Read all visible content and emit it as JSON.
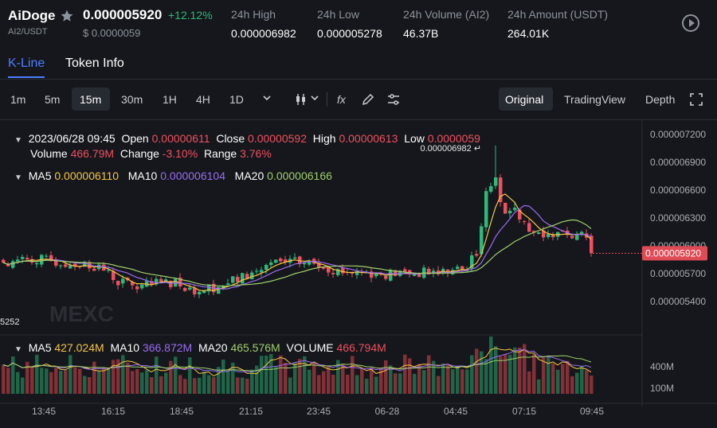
{
  "symbol": {
    "name": "AiDoge",
    "pair": "AI2/USDT"
  },
  "ticker": {
    "price": "0.000005920",
    "change": "+12.12%",
    "usd_price": "$ 0.0000059",
    "stats": [
      {
        "label": "24h High",
        "value": "0.000006982"
      },
      {
        "label": "24h Low",
        "value": "0.000005278"
      },
      {
        "label": "24h Volume (AI2)",
        "value": "46.37B"
      },
      {
        "label": "24h Amount (USDT)",
        "value": "264.01K"
      }
    ]
  },
  "tabs": [
    "K-Line",
    "Token Info"
  ],
  "toolbar": {
    "intervals": [
      "1m",
      "5m",
      "15m",
      "30m",
      "1H",
      "4H",
      "1D"
    ],
    "active_interval": "15m",
    "modes": [
      "Original",
      "TradingView",
      "Depth"
    ],
    "active_mode": "Original"
  },
  "legend": {
    "date": "2023/06/28 09:45",
    "open_label": "Open",
    "open": "0.00000611",
    "close_label": "Close",
    "close": "0.00000592",
    "high_label": "High",
    "high": "0.00000613",
    "low_label": "Low",
    "low": "0.0000059",
    "volume_label": "Volume",
    "volume": "466.79M",
    "change_label": "Change",
    "change": "-3.10%",
    "range_label": "Range",
    "range": "3.76%",
    "ma5_label": "MA5",
    "ma5": "0.000006110",
    "ma10_label": "MA10",
    "ma10": "0.000006104",
    "ma20_label": "MA20",
    "ma20": "0.000006166"
  },
  "volume_legend": {
    "ma5_label": "MA5",
    "ma5": "427.024M",
    "ma10_label": "MA10",
    "ma10": "366.872M",
    "ma20_label": "MA20",
    "ma20": "465.576M",
    "volume_label": "VOLUME",
    "volume": "466.794M"
  },
  "chart": {
    "y_ticks": [
      "0.000007200",
      "0.000006900",
      "0.000006600",
      "0.000006300",
      "0.000006000",
      "0.000005700",
      "0.000005400"
    ],
    "y_values": [
      7.2e-06,
      6.9e-06,
      6.6e-06,
      6.3e-06,
      6e-06,
      5.7e-06,
      5.4e-06
    ],
    "max_label": "0.000006982",
    "min_label": "5252",
    "current_price_label": "0.000005920",
    "volume_ticks": [
      "400M",
      "100M"
    ],
    "x_ticks": [
      "13:45",
      "16:15",
      "18:45",
      "21:15",
      "23:45",
      "06-28",
      "04:45",
      "07:15",
      "09:45"
    ],
    "watermark": "MEXC"
  },
  "colors": {
    "up": "#2db97a",
    "down": "#f0505f",
    "accent": "#4d7cff",
    "ma5": "#f7c544",
    "ma10": "#9b6cf2",
    "ma20": "#9fcf6a"
  }
}
